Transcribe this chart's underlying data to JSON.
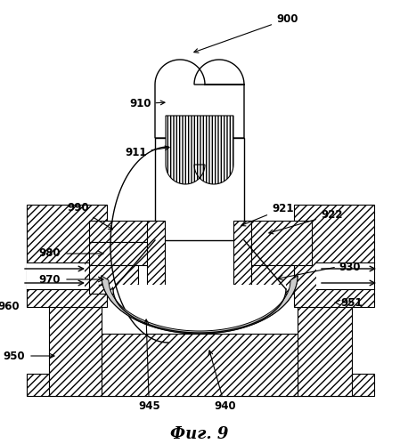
{
  "title": "Фиг. 9",
  "bg_color": "#ffffff",
  "line_color": "#000000",
  "figsize": [
    4.49,
    4.99
  ],
  "dpi": 100
}
